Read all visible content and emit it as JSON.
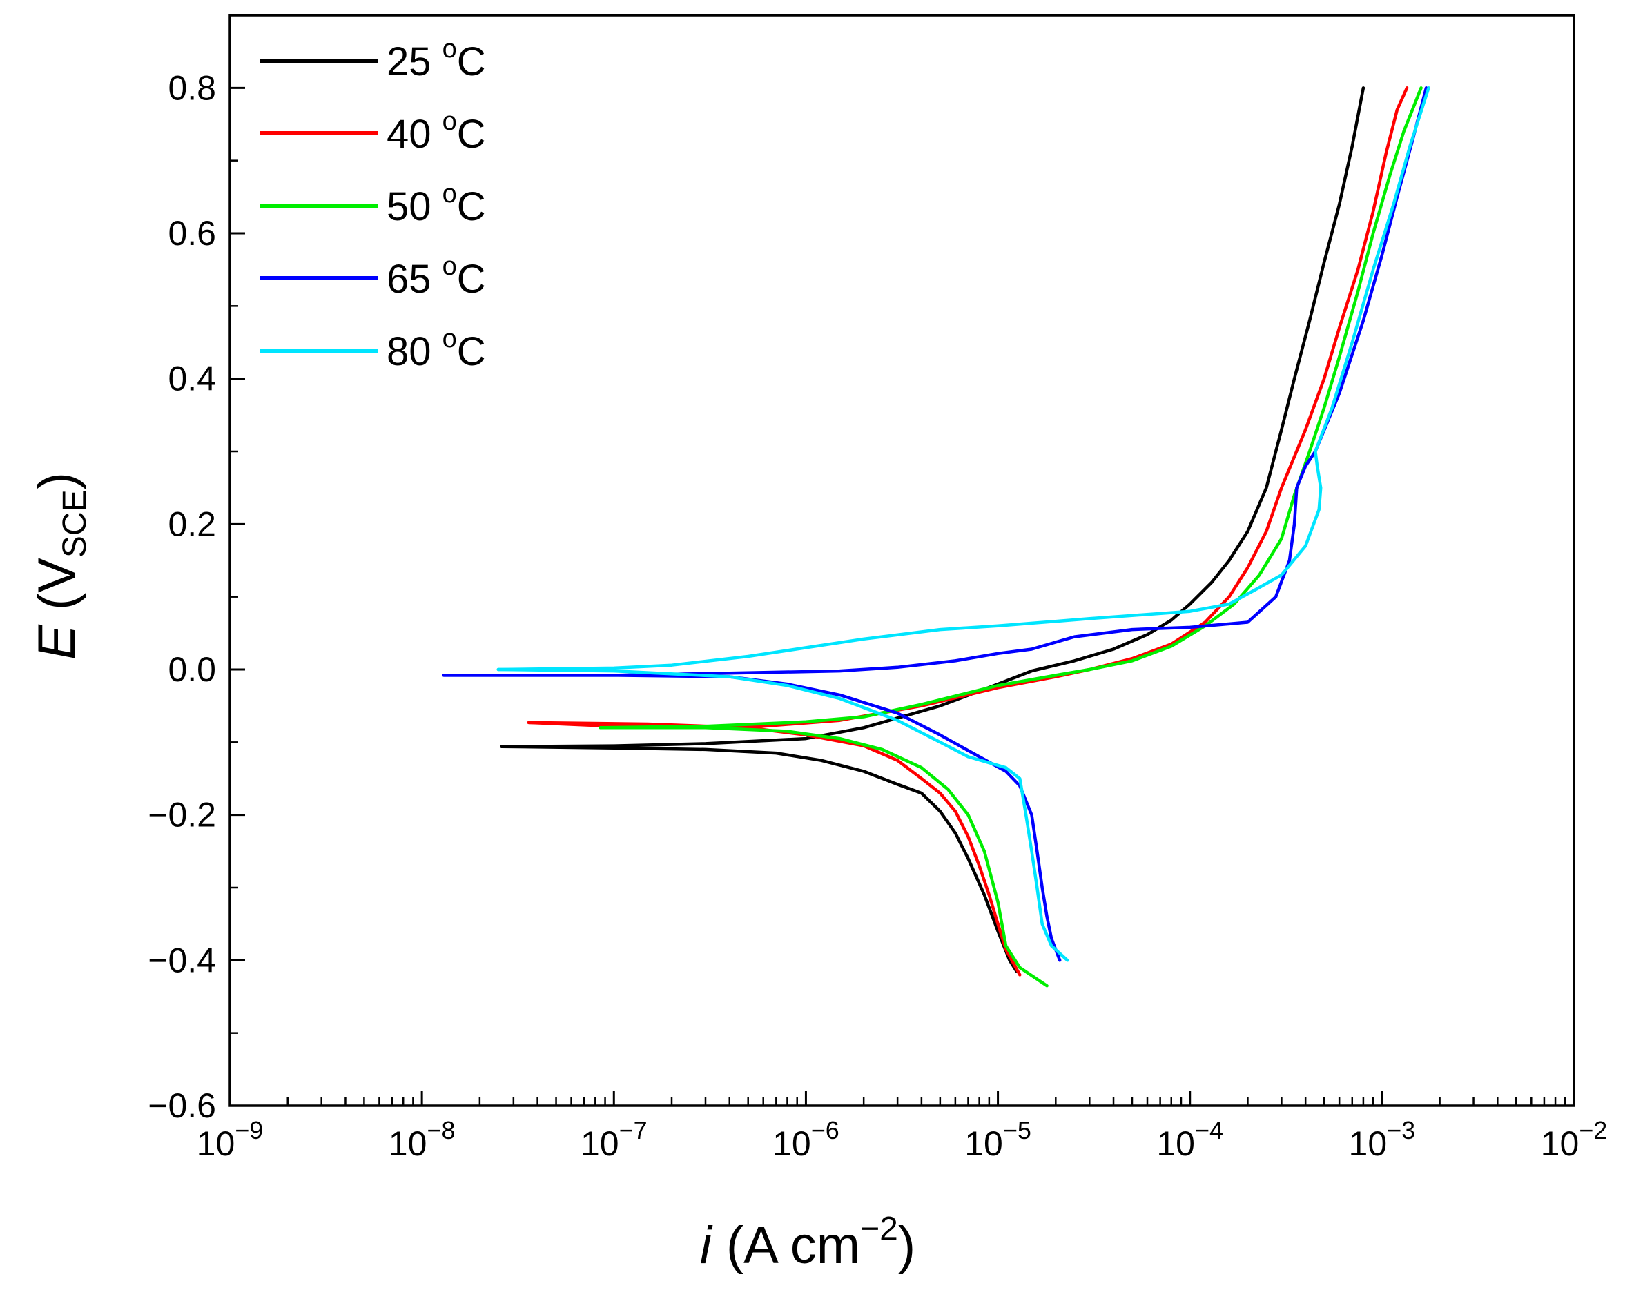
{
  "chart_data": {
    "type": "line",
    "x_scale": "log",
    "xlim": [
      1e-09,
      0.01
    ],
    "ylim": [
      -0.6,
      0.9
    ],
    "grid": false,
    "legend_position": "top-left",
    "x_ticks": [
      {
        "value": 1e-09,
        "base": "10",
        "exp": "−9"
      },
      {
        "value": 1e-08,
        "base": "10",
        "exp": "−8"
      },
      {
        "value": 1e-07,
        "base": "10",
        "exp": "−7"
      },
      {
        "value": 1e-06,
        "base": "10",
        "exp": "−6"
      },
      {
        "value": 1e-05,
        "base": "10",
        "exp": "−5"
      },
      {
        "value": 0.0001,
        "base": "10",
        "exp": "−4"
      },
      {
        "value": 0.001,
        "base": "10",
        "exp": "−3"
      },
      {
        "value": 0.01,
        "base": "10",
        "exp": "−2"
      }
    ],
    "y_ticks": [
      {
        "value": 0.8,
        "label": "0.8"
      },
      {
        "value": 0.6,
        "label": "0.6"
      },
      {
        "value": 0.4,
        "label": "0.4"
      },
      {
        "value": 0.2,
        "label": "0.2"
      },
      {
        "value": 0.0,
        "label": "0.0"
      },
      {
        "value": -0.2,
        "label": "−0.2"
      },
      {
        "value": -0.4,
        "label": "−0.4"
      },
      {
        "value": -0.6,
        "label": "−0.6"
      }
    ],
    "xlabel": {
      "italic": "i",
      "pre": " (A cm",
      "sup": "−2",
      "post": ")"
    },
    "ylabel": {
      "italic": "E",
      "pre": " (V",
      "sub": "SCE",
      "post": ")"
    },
    "series": [
      {
        "name": "25",
        "unit_sup": "o",
        "unit": "C",
        "color": "#000000",
        "cathodic": [
          [
            2.6e-08,
            -0.106
          ],
          [
            1e-07,
            -0.108
          ],
          [
            3e-07,
            -0.11
          ],
          [
            7e-07,
            -0.115
          ],
          [
            1.2e-06,
            -0.125
          ],
          [
            2e-06,
            -0.14
          ],
          [
            3e-06,
            -0.158
          ],
          [
            4e-06,
            -0.17
          ],
          [
            5e-06,
            -0.195
          ],
          [
            6e-06,
            -0.225
          ],
          [
            7e-06,
            -0.26
          ],
          [
            8.5e-06,
            -0.31
          ],
          [
            1e-05,
            -0.36
          ],
          [
            1.15e-05,
            -0.4
          ],
          [
            1.25e-05,
            -0.415
          ]
        ],
        "anodic": [
          [
            2.6e-08,
            -0.106
          ],
          [
            1e-07,
            -0.105
          ],
          [
            3e-07,
            -0.102
          ],
          [
            1e-06,
            -0.095
          ],
          [
            2e-06,
            -0.08
          ],
          [
            5e-06,
            -0.05
          ],
          [
            1e-05,
            -0.02
          ],
          [
            1.5e-05,
            -0.002
          ],
          [
            2.5e-05,
            0.012
          ],
          [
            4e-05,
            0.028
          ],
          [
            6e-05,
            0.048
          ],
          [
            8e-05,
            0.068
          ],
          [
            0.0001,
            0.09
          ],
          [
            0.00013,
            0.12
          ],
          [
            0.00016,
            0.15
          ],
          [
            0.0002,
            0.19
          ],
          [
            0.00025,
            0.25
          ],
          [
            0.0003,
            0.33
          ],
          [
            0.00035,
            0.4
          ],
          [
            0.00042,
            0.48
          ],
          [
            0.0005,
            0.56
          ],
          [
            0.0006,
            0.64
          ],
          [
            0.0007,
            0.72
          ],
          [
            0.0008,
            0.8
          ]
        ]
      },
      {
        "name": "40",
        "unit_sup": "o",
        "unit": "C",
        "color": "#ff0000",
        "cathodic": [
          [
            3.6e-08,
            -0.073
          ],
          [
            1.5e-07,
            -0.075
          ],
          [
            5e-07,
            -0.08
          ],
          [
            1e-06,
            -0.09
          ],
          [
            2e-06,
            -0.105
          ],
          [
            3e-06,
            -0.125
          ],
          [
            4e-06,
            -0.15
          ],
          [
            5e-06,
            -0.17
          ],
          [
            6e-06,
            -0.195
          ],
          [
            7e-06,
            -0.23
          ],
          [
            8e-06,
            -0.27
          ],
          [
            9e-06,
            -0.31
          ],
          [
            1e-05,
            -0.35
          ],
          [
            1.1e-05,
            -0.385
          ],
          [
            1.3e-05,
            -0.42
          ]
        ],
        "anodic": [
          [
            3.6e-08,
            -0.073
          ],
          [
            1e-07,
            -0.078
          ],
          [
            3e-07,
            -0.08
          ],
          [
            6e-07,
            -0.078
          ],
          [
            1.5e-06,
            -0.07
          ],
          [
            4e-06,
            -0.05
          ],
          [
            1e-05,
            -0.025
          ],
          [
            2e-05,
            -0.01
          ],
          [
            3e-05,
            0.0
          ],
          [
            5e-05,
            0.015
          ],
          [
            8e-05,
            0.035
          ],
          [
            0.00012,
            0.065
          ],
          [
            0.00016,
            0.1
          ],
          [
            0.0002,
            0.14
          ],
          [
            0.00025,
            0.19
          ],
          [
            0.0003,
            0.25
          ],
          [
            0.0004,
            0.33
          ],
          [
            0.0005,
            0.4
          ],
          [
            0.0006,
            0.47
          ],
          [
            0.00075,
            0.55
          ],
          [
            0.0009,
            0.63
          ],
          [
            0.00105,
            0.71
          ],
          [
            0.0012,
            0.77
          ],
          [
            0.00135,
            0.8
          ]
        ]
      },
      {
        "name": "50",
        "unit_sup": "o",
        "unit": "C",
        "color": "#00ee00",
        "cathodic": [
          [
            8.5e-08,
            -0.08
          ],
          [
            3e-07,
            -0.08
          ],
          [
            8e-07,
            -0.085
          ],
          [
            1.5e-06,
            -0.095
          ],
          [
            2.5e-06,
            -0.11
          ],
          [
            4e-06,
            -0.135
          ],
          [
            5.5e-06,
            -0.165
          ],
          [
            7e-06,
            -0.2
          ],
          [
            8.5e-06,
            -0.25
          ],
          [
            1e-05,
            -0.32
          ],
          [
            1.1e-05,
            -0.38
          ],
          [
            1.3e-05,
            -0.41
          ],
          [
            1.8e-05,
            -0.435
          ]
        ],
        "anodic": [
          [
            8.5e-08,
            -0.08
          ],
          [
            3e-07,
            -0.078
          ],
          [
            1e-06,
            -0.072
          ],
          [
            2e-06,
            -0.065
          ],
          [
            4e-06,
            -0.048
          ],
          [
            1e-05,
            -0.022
          ],
          [
            2e-05,
            -0.008
          ],
          [
            3e-05,
            0.0
          ],
          [
            5e-05,
            0.012
          ],
          [
            8e-05,
            0.032
          ],
          [
            0.00012,
            0.06
          ],
          [
            0.00017,
            0.09
          ],
          [
            0.00023,
            0.13
          ],
          [
            0.0003,
            0.18
          ],
          [
            0.00035,
            0.24
          ],
          [
            0.00042,
            0.3
          ],
          [
            0.0005,
            0.36
          ],
          [
            0.0006,
            0.43
          ],
          [
            0.00075,
            0.52
          ],
          [
            0.0009,
            0.6
          ],
          [
            0.0011,
            0.68
          ],
          [
            0.0013,
            0.74
          ],
          [
            0.0016,
            0.8
          ]
        ]
      },
      {
        "name": "65",
        "unit_sup": "o",
        "unit": "C",
        "color": "#0000ff",
        "cathodic": [
          [
            1.3e-08,
            -0.008
          ],
          [
            1e-07,
            -0.008
          ],
          [
            4e-07,
            -0.01
          ],
          [
            8e-07,
            -0.02
          ],
          [
            1.5e-06,
            -0.035
          ],
          [
            3e-06,
            -0.06
          ],
          [
            5e-06,
            -0.09
          ],
          [
            8e-06,
            -0.12
          ],
          [
            1.1e-05,
            -0.14
          ],
          [
            1.3e-05,
            -0.16
          ],
          [
            1.5e-05,
            -0.2
          ],
          [
            1.6e-05,
            -0.25
          ],
          [
            1.7e-05,
            -0.3
          ],
          [
            1.8e-05,
            -0.34
          ],
          [
            1.9e-05,
            -0.37
          ],
          [
            2.1e-05,
            -0.4
          ]
        ],
        "anodic": [
          [
            1.3e-08,
            -0.008
          ],
          [
            1e-07,
            -0.008
          ],
          [
            4e-07,
            -0.005
          ],
          [
            1.5e-06,
            -0.002
          ],
          [
            3e-06,
            0.003
          ],
          [
            6e-06,
            0.012
          ],
          [
            1e-05,
            0.022
          ],
          [
            1.5e-05,
            0.028
          ],
          [
            2.5e-05,
            0.045
          ],
          [
            5e-05,
            0.055
          ],
          [
            0.0001,
            0.058
          ],
          [
            0.0002,
            0.065
          ],
          [
            0.00028,
            0.1
          ],
          [
            0.00033,
            0.15
          ],
          [
            0.00035,
            0.2
          ],
          [
            0.00036,
            0.25
          ],
          [
            0.0004,
            0.28
          ],
          [
            0.00045,
            0.3
          ],
          [
            0.0006,
            0.38
          ],
          [
            0.0008,
            0.48
          ],
          [
            0.001,
            0.57
          ],
          [
            0.0012,
            0.65
          ],
          [
            0.00145,
            0.73
          ],
          [
            0.0017,
            0.8
          ]
        ]
      },
      {
        "name": "80",
        "unit_sup": "o",
        "unit": "C",
        "color": "#00e5ff",
        "cathodic": [
          [
            2.5e-08,
            0.0
          ],
          [
            1e-07,
            -0.002
          ],
          [
            4e-07,
            -0.01
          ],
          [
            8e-07,
            -0.022
          ],
          [
            1.5e-06,
            -0.04
          ],
          [
            3e-06,
            -0.07
          ],
          [
            5e-06,
            -0.1
          ],
          [
            7e-06,
            -0.12
          ],
          [
            1.1e-05,
            -0.135
          ],
          [
            1.3e-05,
            -0.15
          ],
          [
            1.4e-05,
            -0.2
          ],
          [
            1.5e-05,
            -0.25
          ],
          [
            1.6e-05,
            -0.3
          ],
          [
            1.7e-05,
            -0.35
          ],
          [
            1.9e-05,
            -0.38
          ],
          [
            2.3e-05,
            -0.4
          ]
        ],
        "anodic": [
          [
            2.5e-08,
            0.0
          ],
          [
            1e-07,
            0.002
          ],
          [
            2e-07,
            0.006
          ],
          [
            5e-07,
            0.018
          ],
          [
            1e-06,
            0.03
          ],
          [
            2e-06,
            0.042
          ],
          [
            5e-06,
            0.055
          ],
          [
            1e-05,
            0.06
          ],
          [
            3e-05,
            0.07
          ],
          [
            0.0001,
            0.08
          ],
          [
            0.00016,
            0.09
          ],
          [
            0.00022,
            0.11
          ],
          [
            0.0003,
            0.13
          ],
          [
            0.0004,
            0.17
          ],
          [
            0.00047,
            0.22
          ],
          [
            0.00048,
            0.25
          ],
          [
            0.00046,
            0.28
          ],
          [
            0.00045,
            0.3
          ],
          [
            0.00055,
            0.36
          ],
          [
            0.0007,
            0.45
          ],
          [
            0.0009,
            0.55
          ],
          [
            0.00115,
            0.64
          ],
          [
            0.0014,
            0.72
          ],
          [
            0.00175,
            0.8
          ]
        ]
      }
    ]
  }
}
